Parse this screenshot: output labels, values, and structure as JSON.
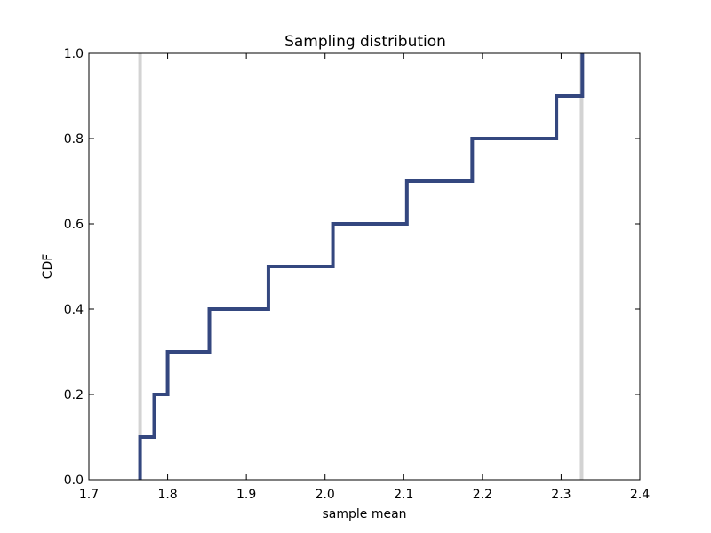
{
  "chart_data": {
    "type": "line",
    "title": "Sampling distribution",
    "xlabel": "sample mean",
    "ylabel": "CDF",
    "xlim": [
      1.7,
      2.4
    ],
    "ylim": [
      0.0,
      1.0
    ],
    "xticks": [
      "1.7",
      "1.8",
      "1.9",
      "2.0",
      "2.1",
      "2.2",
      "2.3",
      "2.4"
    ],
    "yticks": [
      "0.0",
      "0.2",
      "0.4",
      "0.6",
      "0.8",
      "1.0"
    ],
    "grid": false,
    "series": [
      {
        "style": "step",
        "color": "#34477f",
        "points": [
          [
            1.765,
            0.0
          ],
          [
            1.765,
            0.1
          ],
          [
            1.783,
            0.1
          ],
          [
            1.783,
            0.2
          ],
          [
            1.8,
            0.2
          ],
          [
            1.8,
            0.3
          ],
          [
            1.853,
            0.3
          ],
          [
            1.853,
            0.4
          ],
          [
            1.928,
            0.4
          ],
          [
            1.928,
            0.5
          ],
          [
            2.01,
            0.5
          ],
          [
            2.01,
            0.6
          ],
          [
            2.104,
            0.6
          ],
          [
            2.104,
            0.7
          ],
          [
            2.187,
            0.7
          ],
          [
            2.187,
            0.8
          ],
          [
            2.294,
            0.8
          ],
          [
            2.294,
            0.9
          ],
          [
            2.327,
            0.9
          ],
          [
            2.327,
            1.0
          ]
        ]
      }
    ],
    "vlines": [
      {
        "x": 1.765,
        "color": "#d3d3d3"
      },
      {
        "x": 2.326,
        "color": "#d3d3d3"
      }
    ]
  }
}
